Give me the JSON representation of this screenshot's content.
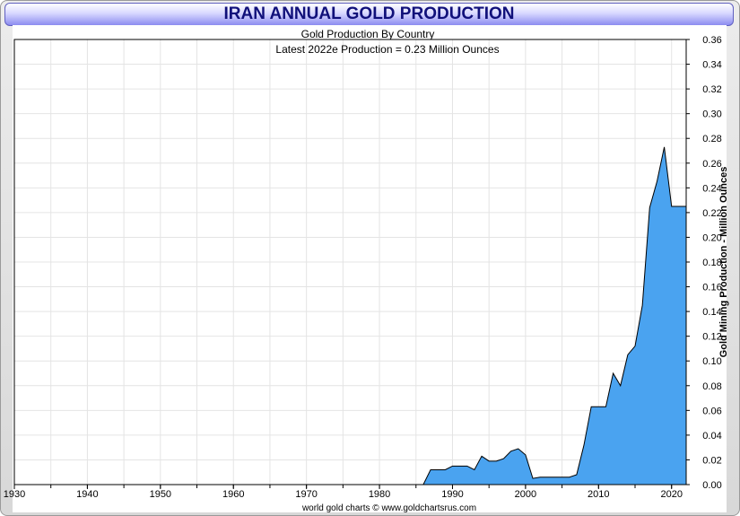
{
  "chart_data": {
    "type": "area",
    "title": "IRAN ANNUAL GOLD PRODUCTION",
    "subtitle": "Gold Production By Country",
    "annotation": "Latest 2022e Production = 0.23 Million Ounces",
    "ylabel": "Gold Mining Production - Million Ounces",
    "xlabel": "",
    "footer": "world gold charts © www.goldchartsrus.com",
    "xlim": [
      1930,
      2022
    ],
    "ylim": [
      0,
      0.36
    ],
    "x_ticks": [
      "1930",
      "1940",
      "1950",
      "1960",
      "1970",
      "1980",
      "1990",
      "2000",
      "2010",
      "2020"
    ],
    "y_ticks": [
      "0.00",
      "0.02",
      "0.04",
      "0.06",
      "0.08",
      "0.10",
      "0.12",
      "0.14",
      "0.16",
      "0.18",
      "0.20",
      "0.22",
      "0.24",
      "0.26",
      "0.28",
      "0.30",
      "0.32",
      "0.34",
      "0.36"
    ],
    "grid": true,
    "fill_color": "#4aa3f0",
    "line_color": "#000000",
    "series": [
      {
        "name": "Iran",
        "x": [
          1930,
          1986,
          1987,
          1988,
          1989,
          1990,
          1991,
          1992,
          1993,
          1994,
          1995,
          1996,
          1997,
          1998,
          1999,
          2000,
          2001,
          2002,
          2003,
          2004,
          2005,
          2006,
          2007,
          2008,
          2009,
          2010,
          2011,
          2012,
          2013,
          2014,
          2015,
          2016,
          2017,
          2018,
          2019,
          2020,
          2021,
          2022
        ],
        "values": [
          0,
          0,
          0.012,
          0.012,
          0.012,
          0.015,
          0.015,
          0.015,
          0.012,
          0.023,
          0.019,
          0.019,
          0.021,
          0.027,
          0.029,
          0.024,
          0.005,
          0.006,
          0.006,
          0.006,
          0.006,
          0.006,
          0.008,
          0.032,
          0.063,
          0.063,
          0.063,
          0.09,
          0.08,
          0.105,
          0.112,
          0.145,
          0.224,
          0.245,
          0.273,
          0.225,
          0.225,
          0.225
        ]
      }
    ]
  }
}
